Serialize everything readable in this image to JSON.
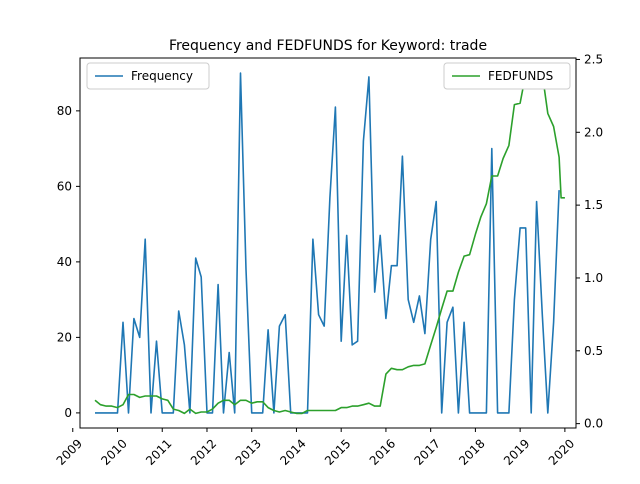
{
  "chart_data": {
    "type": "line",
    "title": "Frequency and FEDFUNDS for Keyword: trade",
    "x_axis": {
      "type": "date",
      "range": [
        "2009-03-01",
        "2020-04-01"
      ],
      "ticks": [
        "2009",
        "2010",
        "2011",
        "2012",
        "2013",
        "2014",
        "2015",
        "2016",
        "2017",
        "2018",
        "2019",
        "2020"
      ]
    },
    "y_left": {
      "range": [
        -4,
        94
      ],
      "ticks": [
        0,
        20,
        40,
        60,
        80
      ]
    },
    "y_right": {
      "range": [
        -0.03,
        2.51
      ],
      "ticks": [
        0.0,
        0.5,
        1.0,
        1.5,
        2.0,
        2.5
      ]
    },
    "series": [
      {
        "name": "Frequency",
        "axis": "left",
        "color": "#1f77b4",
        "legend_position": "top-left",
        "points": [
          [
            "2009-07-01",
            0
          ],
          [
            "2009-08-15",
            0
          ],
          [
            "2009-10-01",
            0
          ],
          [
            "2009-11-15",
            0
          ],
          [
            "2010-01-01",
            0
          ],
          [
            "2010-02-15",
            24
          ],
          [
            "2010-04-01",
            0
          ],
          [
            "2010-05-15",
            25
          ],
          [
            "2010-07-01",
            20
          ],
          [
            "2010-08-15",
            46
          ],
          [
            "2010-10-01",
            0
          ],
          [
            "2010-11-15",
            19
          ],
          [
            "2011-01-01",
            0
          ],
          [
            "2011-02-15",
            0
          ],
          [
            "2011-04-01",
            0
          ],
          [
            "2011-05-15",
            27
          ],
          [
            "2011-07-01",
            18
          ],
          [
            "2011-08-15",
            0
          ],
          [
            "2011-10-01",
            41
          ],
          [
            "2011-11-15",
            36
          ],
          [
            "2012-01-01",
            0
          ],
          [
            "2012-02-15",
            0
          ],
          [
            "2012-04-01",
            34
          ],
          [
            "2012-05-15",
            0
          ],
          [
            "2012-07-01",
            16
          ],
          [
            "2012-08-15",
            0
          ],
          [
            "2012-10-01",
            90
          ],
          [
            "2012-11-15",
            38
          ],
          [
            "2013-01-01",
            0
          ],
          [
            "2013-02-15",
            0
          ],
          [
            "2013-04-01",
            0
          ],
          [
            "2013-05-15",
            22
          ],
          [
            "2013-07-01",
            0
          ],
          [
            "2013-08-15",
            23
          ],
          [
            "2013-10-01",
            26
          ],
          [
            "2013-11-15",
            0
          ],
          [
            "2014-01-01",
            0
          ],
          [
            "2014-02-15",
            0
          ],
          [
            "2014-04-01",
            0
          ],
          [
            "2014-05-15",
            46
          ],
          [
            "2014-07-01",
            26
          ],
          [
            "2014-08-15",
            23
          ],
          [
            "2014-10-01",
            57
          ],
          [
            "2014-11-15",
            81
          ],
          [
            "2015-01-01",
            19
          ],
          [
            "2015-02-15",
            47
          ],
          [
            "2015-04-01",
            18
          ],
          [
            "2015-05-15",
            19
          ],
          [
            "2015-07-01",
            72
          ],
          [
            "2015-08-15",
            89
          ],
          [
            "2015-10-01",
            32
          ],
          [
            "2015-11-15",
            47
          ],
          [
            "2016-01-01",
            25
          ],
          [
            "2016-02-15",
            39
          ],
          [
            "2016-04-01",
            39
          ],
          [
            "2016-05-15",
            68
          ],
          [
            "2016-07-01",
            30
          ],
          [
            "2016-08-15",
            24
          ],
          [
            "2016-10-01",
            31
          ],
          [
            "2016-11-15",
            21
          ],
          [
            "2017-01-01",
            46
          ],
          [
            "2017-02-15",
            56
          ],
          [
            "2017-04-01",
            0
          ],
          [
            "2017-05-15",
            24
          ],
          [
            "2017-07-01",
            28
          ],
          [
            "2017-08-15",
            0
          ],
          [
            "2017-10-01",
            24
          ],
          [
            "2017-11-15",
            0
          ],
          [
            "2018-01-01",
            0
          ],
          [
            "2018-02-15",
            0
          ],
          [
            "2018-04-01",
            0
          ],
          [
            "2018-05-15",
            70
          ],
          [
            "2018-07-01",
            0
          ],
          [
            "2018-08-15",
            0
          ],
          [
            "2018-10-01",
            0
          ],
          [
            "2018-11-15",
            30
          ],
          [
            "2019-01-01",
            49
          ],
          [
            "2019-02-15",
            49
          ],
          [
            "2019-04-01",
            0
          ],
          [
            "2019-05-15",
            56
          ],
          [
            "2019-07-01",
            26
          ],
          [
            "2019-08-15",
            0
          ],
          [
            "2019-10-01",
            24
          ],
          [
            "2019-11-15",
            59
          ]
        ]
      },
      {
        "name": "FEDFUNDS",
        "axis": "right",
        "color": "#2ca02c",
        "legend_position": "top-right",
        "points": [
          [
            "2009-07-01",
            0.16
          ],
          [
            "2009-08-15",
            0.13
          ],
          [
            "2009-10-01",
            0.12
          ],
          [
            "2009-11-15",
            0.12
          ],
          [
            "2010-01-01",
            0.11
          ],
          [
            "2010-02-15",
            0.13
          ],
          [
            "2010-04-01",
            0.2
          ],
          [
            "2010-05-15",
            0.2
          ],
          [
            "2010-07-01",
            0.18
          ],
          [
            "2010-08-15",
            0.19
          ],
          [
            "2010-10-01",
            0.19
          ],
          [
            "2010-11-15",
            0.19
          ],
          [
            "2011-01-01",
            0.17
          ],
          [
            "2011-02-15",
            0.16
          ],
          [
            "2011-04-01",
            0.1
          ],
          [
            "2011-05-15",
            0.09
          ],
          [
            "2011-07-01",
            0.07
          ],
          [
            "2011-08-15",
            0.1
          ],
          [
            "2011-10-01",
            0.07
          ],
          [
            "2011-11-15",
            0.08
          ],
          [
            "2012-01-01",
            0.08
          ],
          [
            "2012-02-15",
            0.1
          ],
          [
            "2012-04-01",
            0.14
          ],
          [
            "2012-05-15",
            0.16
          ],
          [
            "2012-07-01",
            0.16
          ],
          [
            "2012-08-15",
            0.13
          ],
          [
            "2012-10-01",
            0.16
          ],
          [
            "2012-11-15",
            0.16
          ],
          [
            "2013-01-01",
            0.14
          ],
          [
            "2013-02-15",
            0.15
          ],
          [
            "2013-04-01",
            0.15
          ],
          [
            "2013-05-15",
            0.11
          ],
          [
            "2013-07-01",
            0.09
          ],
          [
            "2013-08-15",
            0.08
          ],
          [
            "2013-10-01",
            0.09
          ],
          [
            "2013-11-15",
            0.08
          ],
          [
            "2014-01-01",
            0.07
          ],
          [
            "2014-02-15",
            0.07
          ],
          [
            "2014-04-01",
            0.09
          ],
          [
            "2014-05-15",
            0.09
          ],
          [
            "2014-07-01",
            0.09
          ],
          [
            "2014-08-15",
            0.09
          ],
          [
            "2014-10-01",
            0.09
          ],
          [
            "2014-11-15",
            0.09
          ],
          [
            "2015-01-01",
            0.11
          ],
          [
            "2015-02-15",
            0.11
          ],
          [
            "2015-04-01",
            0.12
          ],
          [
            "2015-05-15",
            0.12
          ],
          [
            "2015-07-01",
            0.13
          ],
          [
            "2015-08-15",
            0.14
          ],
          [
            "2015-10-01",
            0.12
          ],
          [
            "2015-11-15",
            0.12
          ],
          [
            "2016-01-01",
            0.34
          ],
          [
            "2016-02-15",
            0.38
          ],
          [
            "2016-04-01",
            0.37
          ],
          [
            "2016-05-15",
            0.37
          ],
          [
            "2016-07-01",
            0.39
          ],
          [
            "2016-08-15",
            0.4
          ],
          [
            "2016-10-01",
            0.4
          ],
          [
            "2016-11-15",
            0.41
          ],
          [
            "2017-01-01",
            0.54
          ],
          [
            "2017-02-15",
            0.66
          ],
          [
            "2017-04-01",
            0.79
          ],
          [
            "2017-05-15",
            0.91
          ],
          [
            "2017-07-01",
            0.91
          ],
          [
            "2017-08-15",
            1.04
          ],
          [
            "2017-10-01",
            1.15
          ],
          [
            "2017-11-15",
            1.16
          ],
          [
            "2018-01-01",
            1.3
          ],
          [
            "2018-02-15",
            1.42
          ],
          [
            "2018-04-01",
            1.51
          ],
          [
            "2018-05-15",
            1.7
          ],
          [
            "2018-07-01",
            1.7
          ],
          [
            "2018-08-15",
            1.82
          ],
          [
            "2018-10-01",
            1.91
          ],
          [
            "2018-11-15",
            2.19
          ],
          [
            "2019-01-01",
            2.2
          ],
          [
            "2019-02-15",
            2.4
          ],
          [
            "2019-04-01",
            2.41
          ],
          [
            "2019-05-15",
            2.4
          ],
          [
            "2019-07-01",
            2.4
          ],
          [
            "2019-08-15",
            2.13
          ],
          [
            "2019-10-01",
            2.04
          ],
          [
            "2019-11-15",
            1.83
          ],
          [
            "2019-12-01",
            1.55
          ],
          [
            "2020-01-01",
            1.55
          ]
        ]
      }
    ],
    "grid": false
  }
}
